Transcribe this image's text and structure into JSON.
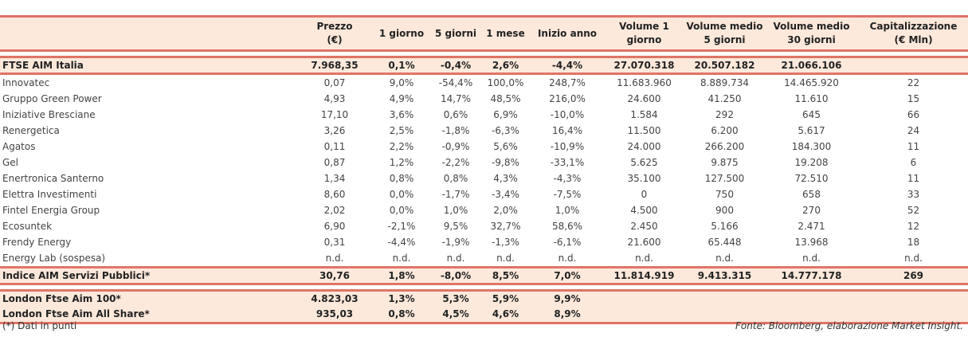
{
  "headers": [
    "",
    "Prezzo\n(€)",
    "1 giorno",
    "5 giorni",
    "1 mese",
    "Inizio anno",
    "Volume 1\ngiorno",
    "Volume medio\n5 giorni",
    "Volume medio\n30 giorni",
    "Capitalizzazione\n(€ Mln)"
  ],
  "header_lines": [
    [
      "",
      ""
    ],
    [
      "Prezzo",
      "(€)"
    ],
    [
      "1 giorno",
      ""
    ],
    [
      "5 giorni",
      ""
    ],
    [
      "1 mese",
      ""
    ],
    [
      "Inizio anno",
      ""
    ],
    [
      "Volume 1",
      "giorno"
    ],
    [
      "Volume medio",
      "5 giorni"
    ],
    [
      "Volume medio",
      "30 giorni"
    ],
    [
      "Capitalizzazione",
      "(€ Mln)"
    ]
  ],
  "ftse": [
    "FTSE AIM Italia",
    "7.968,35",
    "0,1%",
    "-0,4%",
    "2,6%",
    "-4,4%",
    "27.070.318",
    "20.507.182",
    "21.066.106",
    ""
  ],
  "rows": [
    [
      "Innovatec",
      "0,07",
      "9,0%",
      "-54,4%",
      "100,0%",
      "248,7%",
      "11.683.960",
      "8.889.734",
      "14.465.920",
      "22"
    ],
    [
      "Gruppo Green Power",
      "4,93",
      "4,9%",
      "14,7%",
      "48,5%",
      "216,0%",
      "24.600",
      "41.250",
      "11.610",
      "15"
    ],
    [
      "Iniziative Bresciane",
      "17,10",
      "3,6%",
      "0,6%",
      "6,9%",
      "-10,0%",
      "1.584",
      "292",
      "645",
      "66"
    ],
    [
      "Renergetica",
      "3,26",
      "2,5%",
      "-1,8%",
      "-6,3%",
      "16,4%",
      "11.500",
      "6.200",
      "5.617",
      "24"
    ],
    [
      "Agatos",
      "0,11",
      "2,2%",
      "-0,9%",
      "5,6%",
      "-10,9%",
      "24.000",
      "266.200",
      "184.300",
      "11"
    ],
    [
      "Gel",
      "0,87",
      "1,2%",
      "-2,2%",
      "-9,8%",
      "-33,1%",
      "5.625",
      "9.875",
      "19.208",
      "6"
    ],
    [
      "Enertronica Santerno",
      "1,34",
      "0,8%",
      "0,8%",
      "4,3%",
      "-4,3%",
      "35.100",
      "127.500",
      "72.510",
      "11"
    ],
    [
      "Elettra Investimenti",
      "8,60",
      "0,0%",
      "-1,7%",
      "-3,4%",
      "-7,5%",
      "0",
      "750",
      "658",
      "33"
    ],
    [
      "Fintel Energia Group",
      "2,02",
      "0,0%",
      "1,0%",
      "2,0%",
      "1,0%",
      "4.500",
      "900",
      "270",
      "52"
    ],
    [
      "Ecosuntek",
      "6,90",
      "-2,1%",
      "9,5%",
      "32,7%",
      "58,6%",
      "2.450",
      "5.166",
      "2.471",
      "12"
    ],
    [
      "Frendy Energy",
      "0,31",
      "-4,4%",
      "-1,9%",
      "-1,3%",
      "-6,1%",
      "21.600",
      "65.448",
      "13.968",
      "18"
    ],
    [
      "Energy Lab (sospesa)",
      "n.d.",
      "n.d.",
      "n.d.",
      "n.d.",
      "n.d.",
      "n.d.",
      "n.d.",
      "n.d.",
      "n.d."
    ]
  ],
  "servizi": [
    "Indice AIM Servizi Pubblici*",
    "30,76",
    "1,8%",
    "-8,0%",
    "8,5%",
    "7,0%",
    "11.814.919",
    "9.413.315",
    "14.777.178",
    "269"
  ],
  "london": [
    [
      "London Ftse Aim 100*",
      "4.823,03",
      "1,3%",
      "5,3%",
      "5,9%",
      "9,9%",
      "",
      "",
      "",
      ""
    ],
    [
      "London Ftse Aim All Share*",
      "935,03",
      "0,8%",
      "4,5%",
      "4,6%",
      "8,9%",
      "",
      "",
      "",
      ""
    ]
  ],
  "footnote": "(*) Dati in punti",
  "source": "Fonte: Bloomberg, elaborazione Market Insight.",
  "colors": {
    "band": "#fde9dc",
    "rule": "#e07466"
  }
}
